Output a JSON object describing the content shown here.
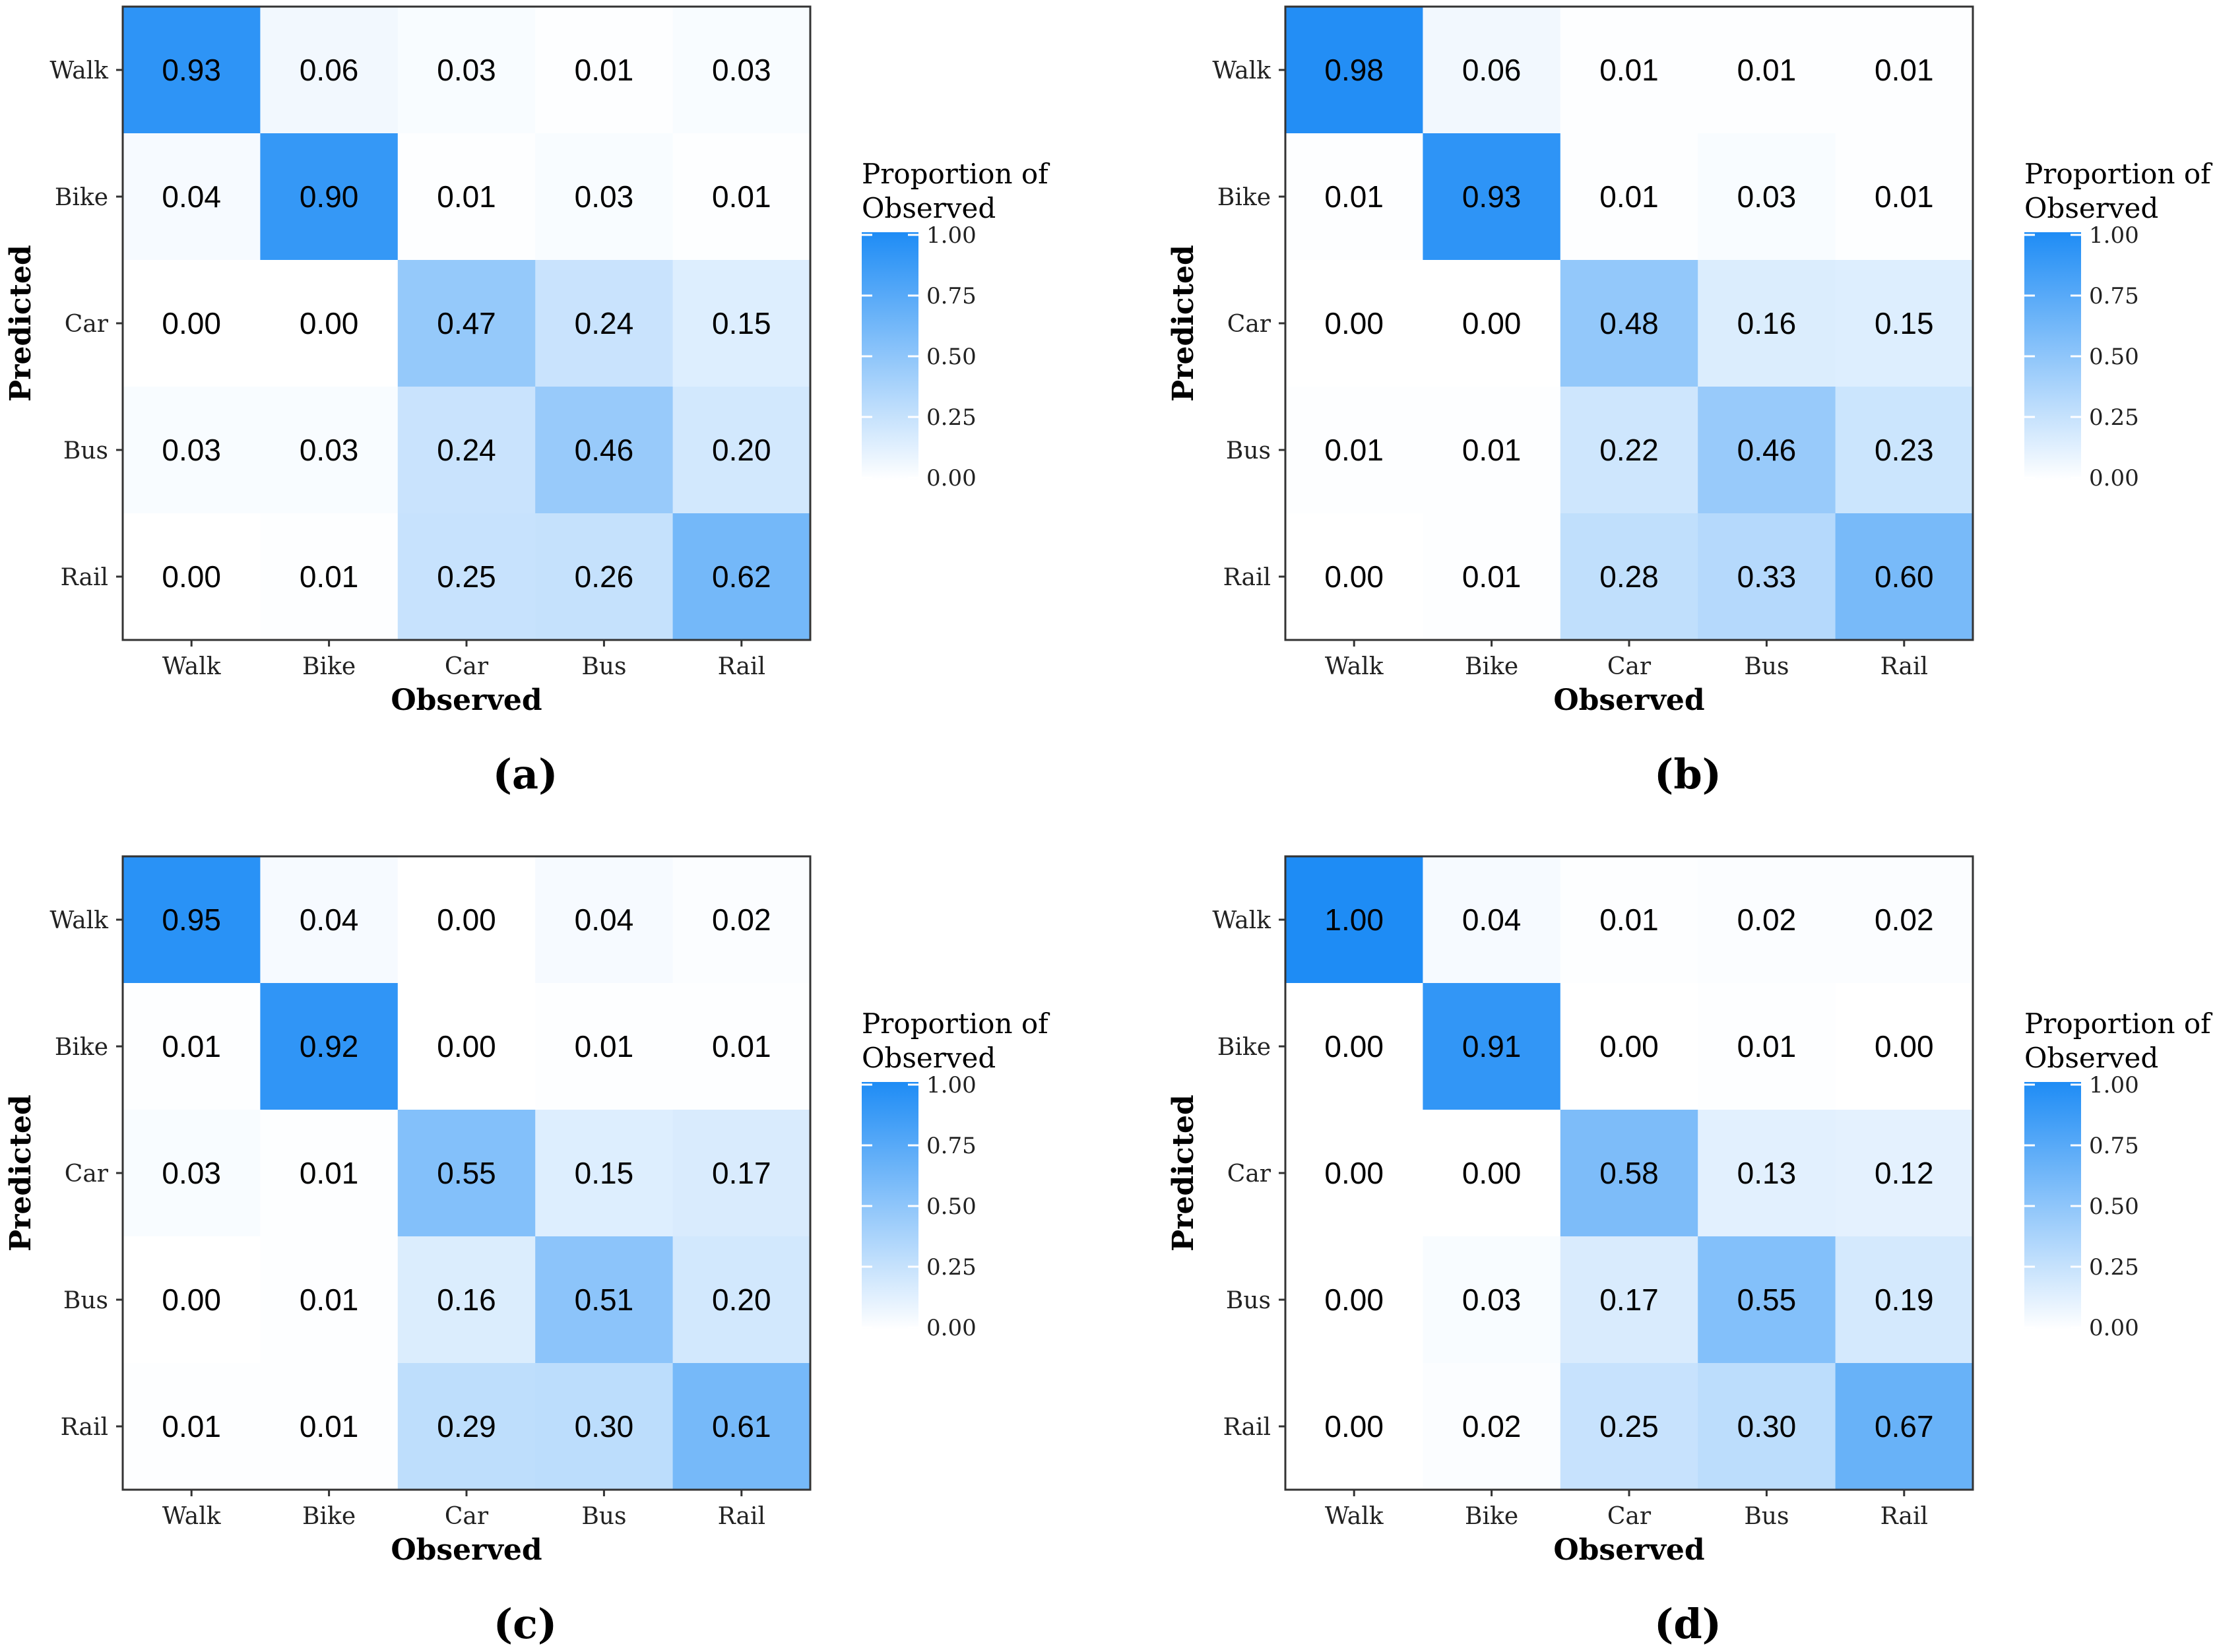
{
  "colors": {
    "high": "#1E8CF5",
    "low": "#FFFFFF",
    "frame": "#333333",
    "text": "#000000"
  },
  "chart_data": [
    {
      "type": "heatmap",
      "label": "(a)",
      "title": "",
      "xlabel": "Observed",
      "ylabel": "Predicted",
      "x_categories": [
        "Walk",
        "Bike",
        "Car",
        "Bus",
        "Rail"
      ],
      "y_categories": [
        "Walk",
        "Bike",
        "Car",
        "Bus",
        "Rail"
      ],
      "values": [
        [
          0.93,
          0.06,
          0.03,
          0.01,
          0.03
        ],
        [
          0.04,
          0.9,
          0.01,
          0.03,
          0.01
        ],
        [
          0.0,
          0.0,
          0.47,
          0.24,
          0.15
        ],
        [
          0.03,
          0.03,
          0.24,
          0.46,
          0.2
        ],
        [
          0.0,
          0.01,
          0.25,
          0.26,
          0.62
        ]
      ],
      "legend_title_lines": [
        "Proportion of",
        "Observed"
      ],
      "legend_ticks": [
        "1.00",
        "0.75",
        "0.50",
        "0.25",
        "0.00"
      ],
      "color_range": [
        0,
        1
      ]
    },
    {
      "type": "heatmap",
      "label": "(b)",
      "title": "",
      "xlabel": "Observed",
      "ylabel": "Predicted",
      "x_categories": [
        "Walk",
        "Bike",
        "Car",
        "Bus",
        "Rail"
      ],
      "y_categories": [
        "Walk",
        "Bike",
        "Car",
        "Bus",
        "Rail"
      ],
      "values": [
        [
          0.98,
          0.06,
          0.01,
          0.01,
          0.01
        ],
        [
          0.01,
          0.93,
          0.01,
          0.03,
          0.01
        ],
        [
          0.0,
          0.0,
          0.48,
          0.16,
          0.15
        ],
        [
          0.01,
          0.01,
          0.22,
          0.46,
          0.23
        ],
        [
          0.0,
          0.01,
          0.28,
          0.33,
          0.6
        ]
      ],
      "legend_title_lines": [
        "Proportion of",
        "Observed"
      ],
      "legend_ticks": [
        "1.00",
        "0.75",
        "0.50",
        "0.25",
        "0.00"
      ],
      "color_range": [
        0,
        1
      ]
    },
    {
      "type": "heatmap",
      "label": "(c)",
      "title": "",
      "xlabel": "Observed",
      "ylabel": "Predicted",
      "x_categories": [
        "Walk",
        "Bike",
        "Car",
        "Bus",
        "Rail"
      ],
      "y_categories": [
        "Walk",
        "Bike",
        "Car",
        "Bus",
        "Rail"
      ],
      "values": [
        [
          0.95,
          0.04,
          0.0,
          0.04,
          0.02
        ],
        [
          0.01,
          0.92,
          0.0,
          0.01,
          0.01
        ],
        [
          0.03,
          0.01,
          0.55,
          0.15,
          0.17
        ],
        [
          0.0,
          0.01,
          0.16,
          0.51,
          0.2
        ],
        [
          0.01,
          0.01,
          0.29,
          0.3,
          0.61
        ]
      ],
      "legend_title_lines": [
        "Proportion of",
        "Observed"
      ],
      "legend_ticks": [
        "1.00",
        "0.75",
        "0.50",
        "0.25",
        "0.00"
      ],
      "color_range": [
        0,
        1
      ]
    },
    {
      "type": "heatmap",
      "label": "(d)",
      "title": "",
      "xlabel": "Observed",
      "ylabel": "Predicted",
      "x_categories": [
        "Walk",
        "Bike",
        "Car",
        "Bus",
        "Rail"
      ],
      "y_categories": [
        "Walk",
        "Bike",
        "Car",
        "Bus",
        "Rail"
      ],
      "values": [
        [
          1.0,
          0.04,
          0.01,
          0.02,
          0.02
        ],
        [
          0.0,
          0.91,
          0.0,
          0.01,
          0.0
        ],
        [
          0.0,
          0.0,
          0.58,
          0.13,
          0.12
        ],
        [
          0.0,
          0.03,
          0.17,
          0.55,
          0.19
        ],
        [
          0.0,
          0.02,
          0.25,
          0.3,
          0.67
        ]
      ],
      "legend_title_lines": [
        "Proportion of",
        "Observed"
      ],
      "legend_ticks": [
        "1.00",
        "0.75",
        "0.50",
        "0.25",
        "0.00"
      ],
      "color_range": [
        0,
        1
      ]
    }
  ]
}
